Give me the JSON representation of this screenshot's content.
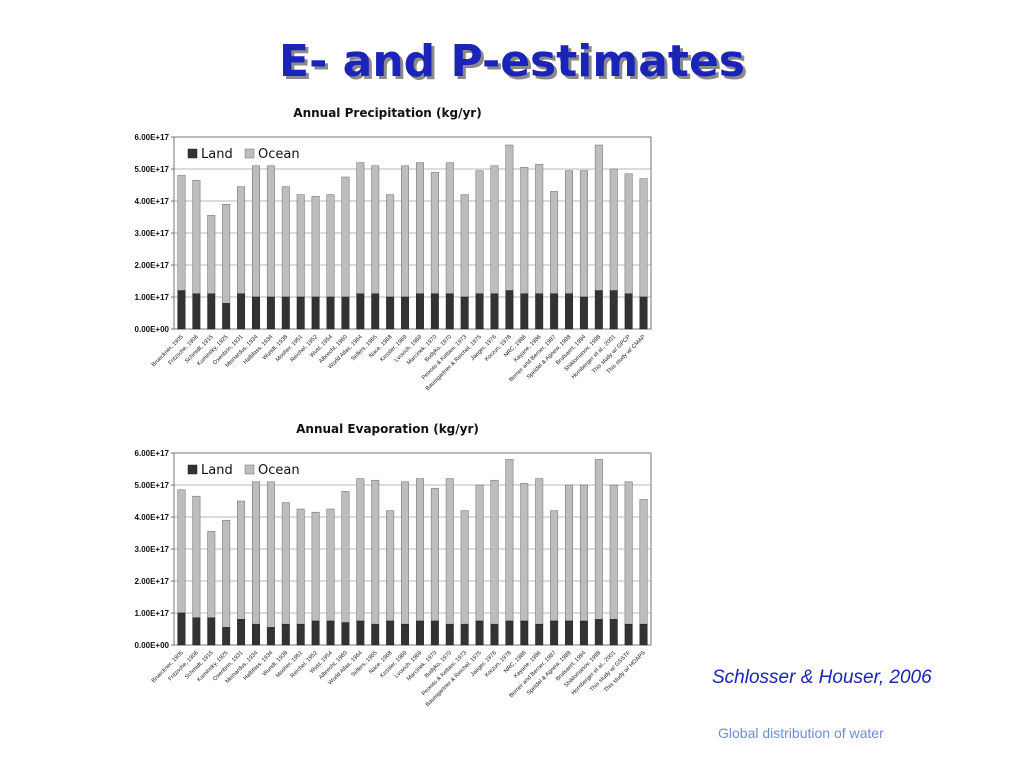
{
  "slide": {
    "title": "E- and P-estimates",
    "citation": "Schlosser & Houser, 2006",
    "footer": "Global distribution of water"
  },
  "colors": {
    "title": "#1a24b8",
    "land": "#333333",
    "ocean": "#bdbdbd",
    "citation": "#1a24b8",
    "footer": "#6f8ed8"
  },
  "chart_data": [
    {
      "type": "bar",
      "stacked": true,
      "title": "Annual Precipitation (kg/yr)",
      "xlabel": "",
      "ylabel": "",
      "ylim": [
        0,
        6e+17
      ],
      "yticks": [
        "0.00E+00",
        "1.00E+17",
        "2.00E+17",
        "3.00E+17",
        "4.00E+17",
        "5.00E+17",
        "6.00E+17"
      ],
      "grid": true,
      "legend": "top-left",
      "categories": [
        "Brueckner, 1905",
        "Fritzsche, 1906",
        "Schmidt, 1915",
        "Kuminsky, 1925",
        "Oxenbrin, 1931",
        "Meinardus, 1934",
        "Halbfass, 1934",
        "Wundt, 1938",
        "Mosher, 1951",
        "Reichel, 1952",
        "Wust, 1954",
        "Albrecht, 1960",
        "World Atlas, 1964",
        "Sellers, 1965",
        "Nace, 1968",
        "Kessler, 1969",
        "Lvovich, 1969",
        "Marcinek, 1970",
        "Budyko, 1970",
        "Peixoto & Kettani, 1973",
        "Baumgartner & Reichel, 1975",
        "Jaeger, 1976",
        "Korzun, 1978",
        "NRC, 1986",
        "Kayane, 1986",
        "Berner and Berner, 1987",
        "Speidel & Agnew, 1988",
        "Brutsaert, 1994",
        "Shiklomanov, 1998",
        "Hornberger et al., 2001",
        "This study w/ GPCP",
        "This study w/ CMAP"
      ],
      "series": [
        {
          "name": "Land",
          "values": [
            1.2e+17,
            1.1e+17,
            1.1e+17,
            8e+16,
            1.1e+17,
            1e+17,
            1e+17,
            1e+17,
            1e+17,
            1e+17,
            1e+17,
            1e+17,
            1.1e+17,
            1.1e+17,
            1e+17,
            1e+17,
            1.1e+17,
            1.1e+17,
            1.1e+17,
            1e+17,
            1.1e+17,
            1.1e+17,
            1.2e+17,
            1.1e+17,
            1.1e+17,
            1.1e+17,
            1.1e+17,
            1e+17,
            1.2e+17,
            1.2e+17,
            1.1e+17,
            1e+17
          ]
        },
        {
          "name": "Ocean",
          "values": [
            3.6e+17,
            3.55e+17,
            2.45e+17,
            3.1e+17,
            3.35e+17,
            4.1e+17,
            4.1e+17,
            3.45e+17,
            3.2e+17,
            3.15e+17,
            3.2e+17,
            3.75e+17,
            4.1e+17,
            4e+17,
            3.2e+17,
            4.1e+17,
            4.1e+17,
            3.8e+17,
            4.1e+17,
            3.2e+17,
            3.85e+17,
            4e+17,
            4.55e+17,
            3.95e+17,
            4.05e+17,
            3.2e+17,
            3.85e+17,
            3.95e+17,
            4.55e+17,
            3.8e+17,
            3.75e+17,
            3.7e+17
          ]
        }
      ]
    },
    {
      "type": "bar",
      "stacked": true,
      "title": "Annual Evaporation (kg/yr)",
      "xlabel": "",
      "ylabel": "",
      "ylim": [
        0,
        6e+17
      ],
      "yticks": [
        "0.00E+00",
        "1.00E+17",
        "2.00E+17",
        "3.00E+17",
        "4.00E+17",
        "5.00E+17",
        "6.00E+17"
      ],
      "grid": true,
      "legend": "top-left",
      "categories": [
        "Brueckner, 1905",
        "Fritzsche, 1906",
        "Schmidt, 1915",
        "Kuminsky, 1925",
        "Oxenbrin, 1931",
        "Meinardus, 1934",
        "Halbfass, 1934",
        "Wundt, 1938",
        "Mosher, 1951",
        "Reichel, 1952",
        "Wust, 1954",
        "Albrecht, 1960",
        "World Atlas, 1964",
        "Sellers, 1965",
        "Nace, 1968",
        "Kessler, 1969",
        "Lvovich, 1969",
        "Marcinek, 1970",
        "Budyko, 1970",
        "Peixoto & Kettani, 1973",
        "Baumgartner & Reichel, 1975",
        "Jaeger, 1976",
        "Korzun, 1978",
        "NRC, 1986",
        "Kayane, 1986",
        "Berner and Berner, 1987",
        "Speidel & Agnew, 1988",
        "Brutsaert, 1994",
        "Shiklomanov, 1998",
        "Hornberger et al., 2001",
        "This study w/ GSSTF",
        "This study w/ HOAPS"
      ],
      "series": [
        {
          "name": "Land",
          "values": [
            1e+17,
            8.5e+16,
            8.5e+16,
            5.5e+16,
            8e+16,
            6.5e+16,
            5.5e+16,
            6.5e+16,
            6.5e+16,
            7.5e+16,
            7.5e+16,
            7e+16,
            7.5e+16,
            6.5e+16,
            7.5e+16,
            6.5e+16,
            7.5e+16,
            7.5e+16,
            6.5e+16,
            6.5e+16,
            7.5e+16,
            6.5e+16,
            7.5e+16,
            7.5e+16,
            6.5e+16,
            7.5e+16,
            7.5e+16,
            7.5e+16,
            8e+16,
            8e+16,
            6.5e+16,
            6.5e+16
          ]
        },
        {
          "name": "Ocean",
          "values": [
            3.85e+17,
            3.8e+17,
            2.7e+17,
            3.35e+17,
            3.7e+17,
            4.45e+17,
            4.55e+17,
            3.8e+17,
            3.6e+17,
            3.4e+17,
            3.5e+17,
            4.1e+17,
            4.45e+17,
            4.5e+17,
            3.45e+17,
            4.45e+17,
            4.45e+17,
            4.15e+17,
            4.55e+17,
            3.55e+17,
            4.25e+17,
            4.5e+17,
            5.05e+17,
            4.3e+17,
            4.55e+17,
            3.45e+17,
            4.25e+17,
            4.25e+17,
            5e+17,
            4.2e+17,
            4.45e+17,
            3.9e+17
          ]
        }
      ]
    }
  ]
}
